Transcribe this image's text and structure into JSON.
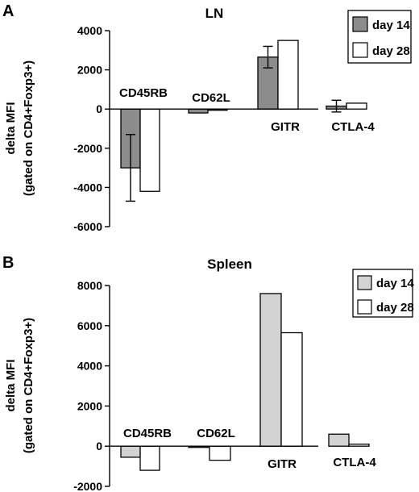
{
  "chart_data": [
    {
      "type": "bar",
      "panel_label": "A",
      "title": "LN",
      "ylabel": "delta MFI\n(gated on CD4+Foxp3+)",
      "xlabel": "",
      "ylim": [
        -6000,
        4000
      ],
      "yticks": [
        4000,
        2000,
        0,
        -2000,
        -4000,
        -6000
      ],
      "categories": [
        "CD45RB",
        "CD62L",
        "GITR",
        "CTLA-4"
      ],
      "series": [
        {
          "name": "day 14",
          "color": "#8c8c8c",
          "values": [
            -3000,
            -200,
            2650,
            150
          ],
          "error": [
            1700,
            0,
            550,
            300
          ]
        },
        {
          "name": "day 28",
          "color": "#ffffff",
          "values": [
            -4200,
            -60,
            3500,
            300
          ],
          "error": [
            0,
            0,
            0,
            0
          ]
        }
      ],
      "legend_position": "top-right",
      "grid": false
    },
    {
      "type": "bar",
      "panel_label": "B",
      "title": "Spleen",
      "ylabel": "delta MFI\n(gated on CD4+Foxp3+)",
      "xlabel": "",
      "ylim": [
        -2000,
        8000
      ],
      "yticks": [
        8000,
        6000,
        4000,
        2000,
        0,
        -2000
      ],
      "categories": [
        "CD45RB",
        "CD62L",
        "GITR",
        "CTLA-4"
      ],
      "series": [
        {
          "name": "day 14",
          "color": "#d3d3d3",
          "values": [
            -550,
            -60,
            7600,
            600
          ],
          "error": [
            0,
            0,
            0,
            0
          ]
        },
        {
          "name": "day 28",
          "color": "#ffffff",
          "values": [
            -1200,
            -700,
            5650,
            100
          ],
          "error": [
            0,
            0,
            0,
            0
          ]
        }
      ],
      "legend_position": "top-right",
      "grid": false
    }
  ]
}
